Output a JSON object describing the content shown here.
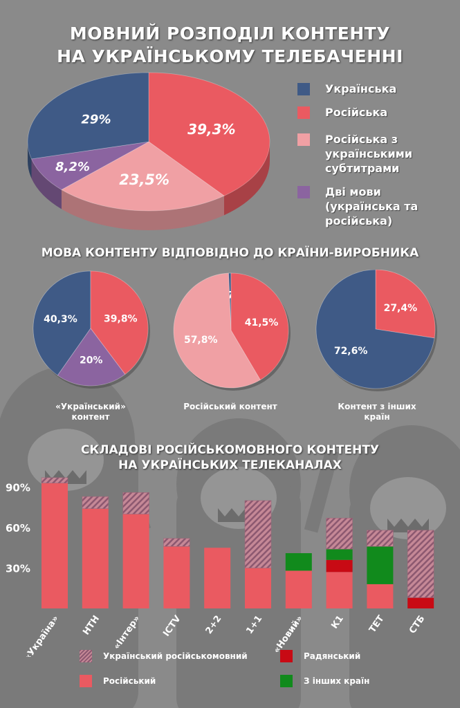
{
  "title_line1": "МОВНИЙ РОЗПОДІЛ КОНТЕНТУ",
  "title_line2": "НА УКРАЇНСЬКОМУ ТЕЛЕБАЧЕННІ",
  "colors": {
    "ukrainian": "#3f5a86",
    "russian": "#ea5a61",
    "russian_subtitled": "#f0a0a4",
    "two_languages": "#8b64a0",
    "soviet": "#c80a14",
    "foreign": "#118a1c",
    "ukr_russophone_hatch": "#a5707f"
  },
  "main_legend": [
    {
      "key": "ukrainian",
      "label": "Українська"
    },
    {
      "key": "russian",
      "label": "Російська"
    },
    {
      "key": "russian_subtitled",
      "label": "Російська з українськими субтитрами"
    },
    {
      "key": "two_languages",
      "label": "Дві мови (українська та російська)"
    }
  ],
  "section2_title": "МОВА КОНТЕНТУ ВІДПОВІДНО ДО КРАЇНИ-ВИРОБНИКА",
  "section3_title_line1": "СКЛАДОВІ РОСІЙСЬКОМОВНОГО КОНТЕНТУ",
  "section3_title_line2": "НА УКРАЇНСЬКИХ ТЕЛЕКАНАЛАХ",
  "pie_captions": [
    "«Український» контент",
    "Російський контент",
    "Контент з інших країн"
  ],
  "bar_legend": {
    "ukr_russophone": "Український російськомовний",
    "soviet": "Радянський",
    "russian": "Російський",
    "foreign": "З інших країн"
  },
  "chart_data": [
    {
      "type": "pie",
      "title": "МОВНИЙ РОЗПОДІЛ КОНТЕНТУ НА УКРАЇНСЬКОМУ ТЕЛЕБАЧЕННІ",
      "slices": [
        {
          "label": "Українська",
          "value": 29,
          "text": "29%"
        },
        {
          "label": "Російська",
          "value": 39.3,
          "text": "39,3%"
        },
        {
          "label": "Російська з українськими субтитрами",
          "value": 23.5,
          "text": "23,5%"
        },
        {
          "label": "Дві мови (українська та російська)",
          "value": 8.2,
          "text": "8,2%"
        }
      ]
    },
    {
      "type": "pie",
      "title": "«Український» контент",
      "slices": [
        {
          "label": "Українська",
          "value": 40.3,
          "text": "40,3%"
        },
        {
          "label": "Російська",
          "value": 39.8,
          "text": "39,8%"
        },
        {
          "label": "Дві мови (українська та російська)",
          "value": 20,
          "text": "20%"
        }
      ]
    },
    {
      "type": "pie",
      "title": "Російський контент",
      "slices": [
        {
          "label": "Українська",
          "value": 0.7,
          "text": "0,7%"
        },
        {
          "label": "Російська",
          "value": 41.5,
          "text": "41,5%"
        },
        {
          "label": "Російська з українськими субтитрами",
          "value": 57.8,
          "text": "57,8%"
        }
      ]
    },
    {
      "type": "pie",
      "title": "Контент з інших країн",
      "slices": [
        {
          "label": "Українська",
          "value": 72.6,
          "text": "72,6%"
        },
        {
          "label": "Російська",
          "value": 27.4,
          "text": "27,4%"
        }
      ]
    },
    {
      "type": "bar",
      "title": "СКЛАДОВІ РОСІЙСЬКОМОВНОГО КОНТЕНТУ НА УКРАЇНСЬКИХ ТЕЛЕКАНАЛАХ",
      "stacked": true,
      "categories": [
        "«Україна»",
        "НТН",
        "«Інтер»",
        "ICTV",
        "2+2",
        "1+1",
        "«Новий»",
        "К1",
        "ТЕТ",
        "СТБ"
      ],
      "yticks": [
        "30%",
        "60%",
        "90%"
      ],
      "ylim": [
        0,
        100
      ],
      "series": [
        {
          "name": "Російський",
          "values": [
            93,
            74,
            70,
            46,
            45,
            30,
            28,
            27,
            18,
            0
          ]
        },
        {
          "name": "Радянський",
          "values": [
            0,
            0,
            0,
            0,
            0,
            0,
            0,
            9,
            0,
            8
          ]
        },
        {
          "name": "З інших країн",
          "values": [
            0,
            0,
            0,
            0,
            0,
            0,
            13,
            8,
            28,
            0
          ]
        },
        {
          "name": "Український російськомовний",
          "values": [
            4,
            9,
            16,
            6,
            0,
            50,
            0,
            23,
            12,
            50
          ]
        }
      ]
    }
  ]
}
